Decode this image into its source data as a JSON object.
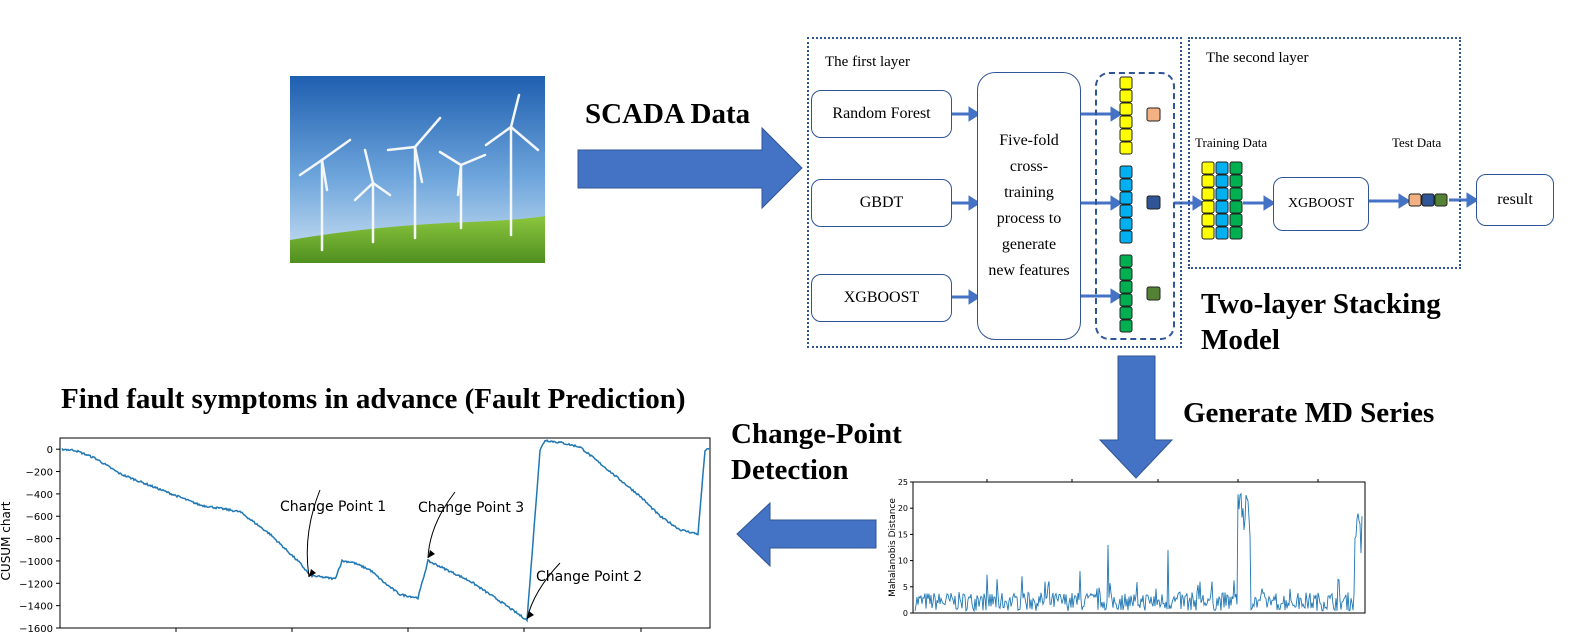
{
  "headings": {
    "scada": "SCADA Data",
    "stacking": "Two-layer Stacking Model",
    "md_series": "Generate MD Series",
    "change_point": "Change-Point Detection",
    "fault_prediction": "Find fault symptoms in advance (Fault Prediction)"
  },
  "first_layer": {
    "title": "The first layer",
    "models": [
      "Random Forest",
      "GBDT",
      "XGBOOST"
    ],
    "cv_box": "Five-fold cross-training process to generate new features"
  },
  "second_layer": {
    "title": "The second layer",
    "training_label": "Training Data",
    "test_label": "Test Data",
    "model": "XGBOOST",
    "result": "result"
  },
  "colors": {
    "yellow": "#ffff00",
    "blue": "#00b0f0",
    "green": "#00b050",
    "orange": "#f4b183",
    "navy": "#2f5597",
    "olive": "#548235",
    "arrow": "#4472c4",
    "line": "#1f77b4"
  },
  "chart_data": [
    {
      "type": "line",
      "name": "md",
      "ylabel": "Mahalanobis Distance",
      "ylim": [
        0,
        25
      ],
      "yticks": [
        "0",
        "5",
        "10",
        "15",
        "20",
        "25"
      ]
    },
    {
      "type": "line",
      "name": "cusum",
      "ylabel": "CUSUM chart",
      "ylim": [
        -1600,
        100
      ],
      "yticks": [
        "0",
        "−200",
        "−400",
        "−600",
        "−800",
        "−1000",
        "−1200",
        "−1400",
        "−1600"
      ],
      "annotations": [
        "Change Point 1",
        "Change Point 3",
        "Change Point 2"
      ]
    }
  ]
}
